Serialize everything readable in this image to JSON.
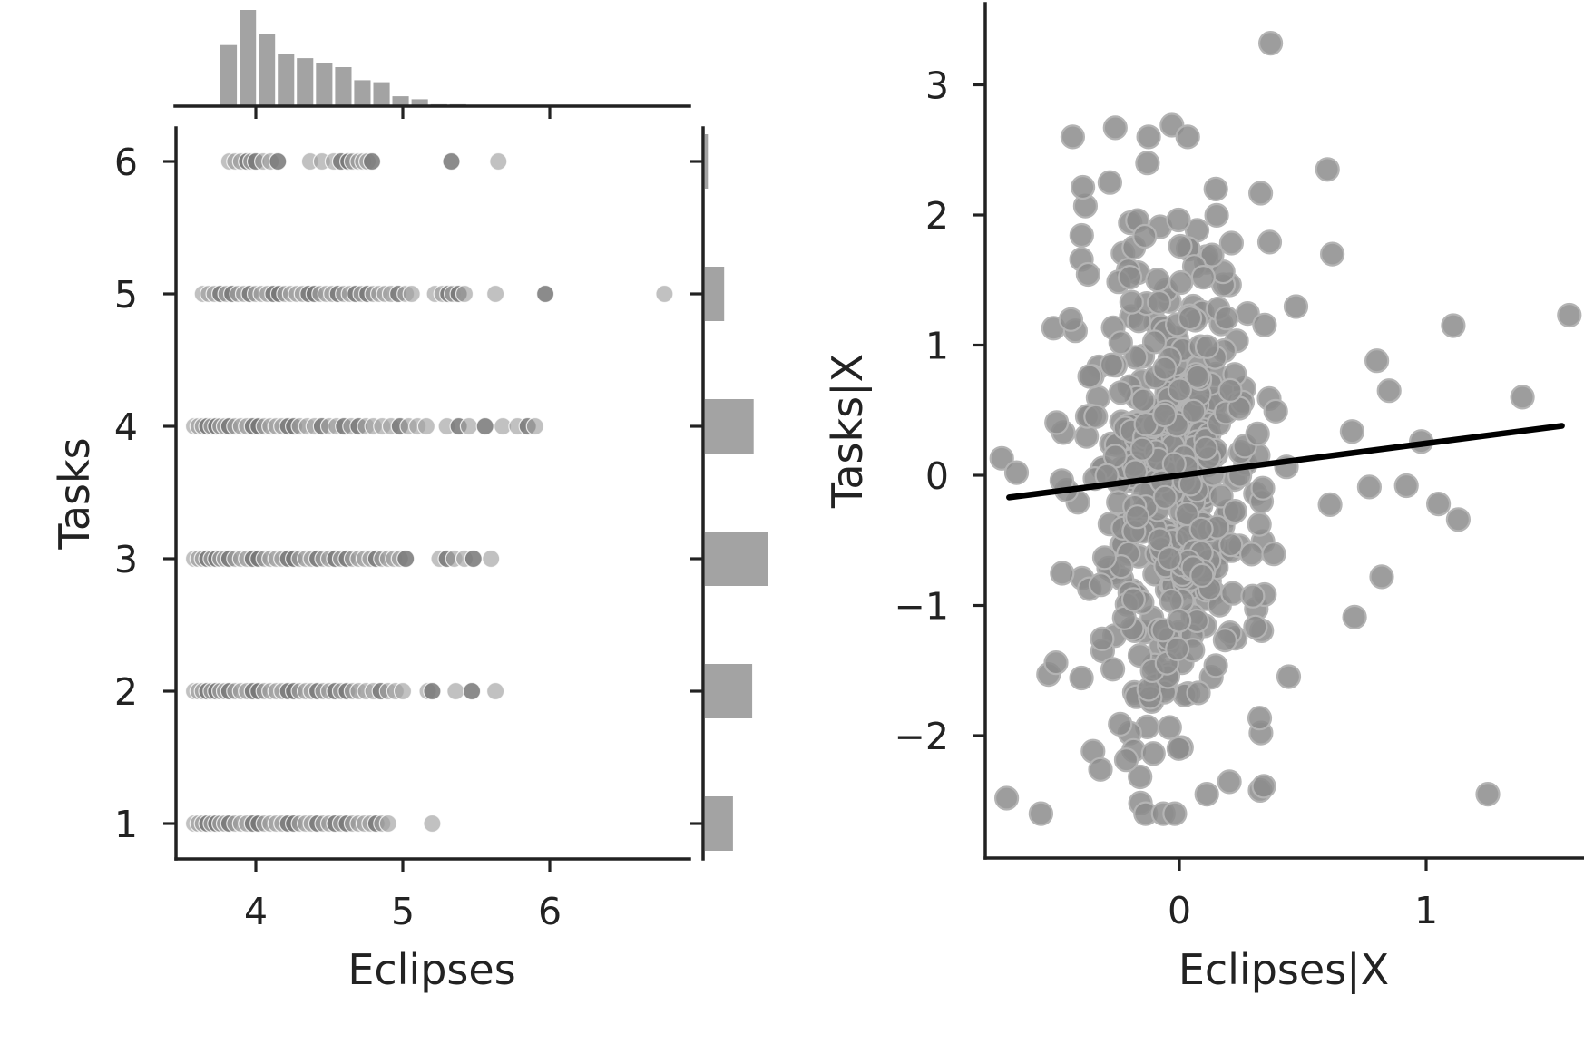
{
  "chart_data": [
    {
      "type": "scatter",
      "subtype": "jointplot",
      "xlabel": "Eclipses",
      "ylabel": "Tasks",
      "xlim": [
        3.45,
        7.0
      ],
      "ylim": [
        0.75,
        6.25
      ],
      "xticks": [
        4,
        5,
        6
      ],
      "yticks": [
        1,
        2,
        3,
        4,
        5,
        6
      ],
      "point_color": "#a0a0a0",
      "point_dark_color": "#777777",
      "grid": false,
      "series": [
        {
          "y": 6,
          "x": [
            3.82,
            3.86,
            3.9,
            3.94,
            3.97,
            4.0,
            4.05,
            4.1,
            4.15,
            4.37,
            4.45,
            4.53,
            4.58,
            4.63,
            4.66,
            4.7,
            4.73,
            4.76,
            4.79,
            5.33,
            5.65
          ]
        },
        {
          "y": 5,
          "x": [
            3.64,
            3.68,
            3.72,
            3.76,
            3.8,
            3.84,
            3.88,
            3.92,
            3.96,
            4.0,
            4.04,
            4.08,
            4.12,
            4.16,
            4.2,
            4.24,
            4.28,
            4.32,
            4.36,
            4.4,
            4.44,
            4.48,
            4.52,
            4.56,
            4.6,
            4.64,
            4.68,
            4.72,
            4.76,
            4.8,
            4.84,
            4.88,
            4.92,
            4.97,
            5.02,
            5.06,
            5.22,
            5.27,
            5.31,
            5.34,
            5.38,
            5.42,
            5.63,
            5.97,
            6.78
          ]
        },
        {
          "y": 4,
          "x": [
            3.58,
            3.61,
            3.64,
            3.67,
            3.7,
            3.73,
            3.76,
            3.79,
            3.82,
            3.86,
            3.9,
            3.94,
            3.98,
            4.02,
            4.06,
            4.1,
            4.14,
            4.18,
            4.22,
            4.26,
            4.3,
            4.35,
            4.4,
            4.45,
            4.5,
            4.55,
            4.6,
            4.65,
            4.7,
            4.75,
            4.8,
            4.86,
            4.92,
            4.98,
            5.04,
            5.1,
            5.16,
            5.3,
            5.38,
            5.45,
            5.56,
            5.68,
            5.78,
            5.85,
            5.9
          ]
        },
        {
          "y": 3,
          "x": [
            3.58,
            3.61,
            3.64,
            3.67,
            3.7,
            3.73,
            3.76,
            3.79,
            3.82,
            3.86,
            3.9,
            3.94,
            3.98,
            4.02,
            4.06,
            4.1,
            4.14,
            4.18,
            4.22,
            4.26,
            4.3,
            4.34,
            4.38,
            4.42,
            4.46,
            4.5,
            4.54,
            4.58,
            4.62,
            4.66,
            4.7,
            4.74,
            4.78,
            4.82,
            4.86,
            4.9,
            4.94,
            4.98,
            5.02,
            5.25,
            5.3,
            5.35,
            5.42,
            5.48,
            5.6
          ]
        },
        {
          "y": 2,
          "x": [
            3.58,
            3.61,
            3.64,
            3.67,
            3.7,
            3.73,
            3.76,
            3.79,
            3.82,
            3.86,
            3.9,
            3.94,
            3.98,
            4.02,
            4.06,
            4.1,
            4.14,
            4.18,
            4.22,
            4.26,
            4.3,
            4.34,
            4.38,
            4.42,
            4.46,
            4.5,
            4.54,
            4.58,
            4.62,
            4.66,
            4.7,
            4.75,
            4.8,
            4.85,
            4.9,
            4.95,
            5.0,
            5.17,
            5.2,
            5.36,
            5.47,
            5.63
          ]
        },
        {
          "y": 1,
          "x": [
            3.58,
            3.61,
            3.64,
            3.67,
            3.7,
            3.73,
            3.76,
            3.79,
            3.82,
            3.86,
            3.9,
            3.94,
            3.98,
            4.02,
            4.06,
            4.1,
            4.14,
            4.18,
            4.22,
            4.26,
            4.3,
            4.34,
            4.38,
            4.42,
            4.46,
            4.5,
            4.54,
            4.58,
            4.62,
            4.66,
            4.7,
            4.74,
            4.78,
            4.82,
            4.86,
            4.9,
            5.2
          ]
        }
      ],
      "marginal_x_hist": {
        "type": "bar",
        "bin_edges": [
          3.75,
          3.88,
          4.01,
          4.14,
          4.27,
          4.4,
          4.53,
          4.66,
          4.79,
          4.92,
          5.05,
          5.18,
          5.31,
          5.44
        ],
        "counts": [
          60,
          95,
          71,
          51,
          47,
          42,
          38,
          25,
          23,
          9,
          6,
          1,
          1,
          3
        ]
      },
      "marginal_y_hist": {
        "type": "bar",
        "categories": [
          1,
          2,
          3,
          4,
          5,
          6
        ],
        "counts": [
          38,
          64,
          86,
          66,
          26,
          4
        ]
      }
    },
    {
      "type": "scatter",
      "subtype": "partial-regression",
      "xlabel": "Eclipses|X",
      "ylabel": "Tasks|X",
      "xlim": [
        -0.79,
        1.63
      ],
      "ylim": [
        -2.9,
        3.62
      ],
      "xticks": [
        0,
        1
      ],
      "yticks": [
        -2,
        -1,
        0,
        1,
        2,
        3
      ],
      "point_color": "#8c8c8c",
      "grid": false,
      "fit_line": {
        "x": [
          -0.69,
          1.55
        ],
        "y": [
          -0.17,
          0.38
        ],
        "color": "#000000"
      },
      "outliers": [
        [
          0.37,
          3.32
        ],
        [
          -0.03,
          2.69
        ],
        [
          -0.26,
          2.67
        ],
        [
          1.58,
          1.23
        ],
        [
          1.11,
          1.15
        ],
        [
          1.39,
          0.6
        ],
        [
          1.25,
          -2.45
        ],
        [
          0.98,
          0.26
        ],
        [
          1.05,
          -0.22
        ],
        [
          1.13,
          -0.34
        ],
        [
          0.8,
          0.88
        ],
        [
          0.85,
          0.65
        ],
        [
          0.77,
          -0.09
        ],
        [
          0.92,
          -0.08
        ],
        [
          0.82,
          -0.78
        ],
        [
          0.71,
          -1.09
        ],
        [
          0.6,
          2.35
        ],
        [
          0.62,
          1.7
        ],
        [
          -0.72,
          0.13
        ],
        [
          -0.66,
          0.02
        ],
        [
          -0.51,
          1.13
        ],
        [
          -0.53,
          -1.53
        ],
        [
          -0.5,
          -1.44
        ],
        [
          -0.35,
          -2.12
        ],
        [
          -0.32,
          -2.26
        ]
      ],
      "core": {
        "center": [
          -0.02,
          -0.05
        ],
        "sd": [
          0.2,
          1.0
        ],
        "count": 470,
        "seed": 7
      }
    }
  ]
}
